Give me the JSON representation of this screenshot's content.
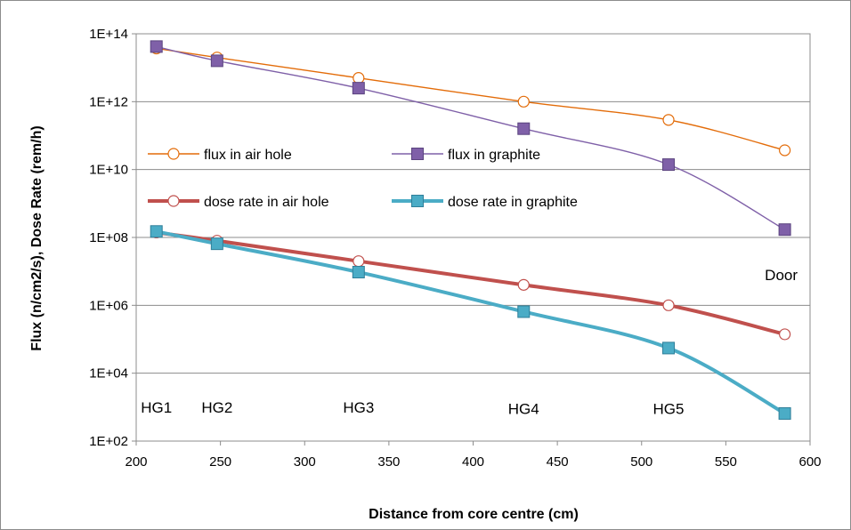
{
  "chart_data": {
    "type": "line",
    "title": "",
    "xlabel": "Distance from core centre (cm)",
    "ylabel": "Flux (n/cm2/s), Dose Rate (rem/h)",
    "x_scale": "linear",
    "y_scale": "log",
    "xlim": [
      200,
      600
    ],
    "ylim": [
      100,
      100000000000000
    ],
    "x_ticks": [
      "200",
      "250",
      "300",
      "350",
      "400",
      "450",
      "500",
      "550",
      "600"
    ],
    "x_tick_values": [
      200,
      250,
      300,
      350,
      400,
      450,
      500,
      550,
      600
    ],
    "y_ticks": [
      "1E+02",
      "1E+04",
      "1E+06",
      "1E+08",
      "1E+10",
      "1E+12",
      "1E+14"
    ],
    "y_tick_values": [
      100,
      10000,
      1000000,
      100000000,
      10000000000,
      1000000000000,
      100000000000000
    ],
    "grid": "horizontal",
    "legend_position": "inside-upper-left",
    "x": [
      212,
      248,
      332,
      430,
      516,
      585
    ],
    "series": [
      {
        "name": "flux in air hole",
        "color": "#e36c09",
        "marker": "circle-open",
        "line_width": "thin",
        "values": [
          37000000000000,
          20000000000000,
          5000000000000,
          1000000000000,
          290000000000,
          37000000000
        ]
      },
      {
        "name": "flux in graphite",
        "color": "#7f60a8",
        "marker": "square-filled",
        "line_width": "thin",
        "values": [
          42000000000000,
          16000000000000,
          2500000000000,
          160000000000,
          14000000000,
          170000000
        ]
      },
      {
        "name": "dose rate in air hole",
        "color": "#c0504d",
        "marker": "circle-open",
        "line_width": "thick",
        "values": [
          140000000,
          80000000,
          20000000,
          4000000,
          1000000,
          140000
        ]
      },
      {
        "name": "dose rate in graphite",
        "color": "#4bacc6",
        "marker": "square-filled",
        "line_width": "thick",
        "values": [
          150000000,
          65000000,
          9500000,
          650000,
          55000,
          650
        ]
      }
    ],
    "annotations": [
      {
        "text": "HG1",
        "x": 212,
        "y": 1000
      },
      {
        "text": "HG2",
        "x": 248,
        "y": 1000
      },
      {
        "text": "HG3",
        "x": 332,
        "y": 1000
      },
      {
        "text": "HG4",
        "x": 430,
        "y": 900
      },
      {
        "text": "HG5",
        "x": 516,
        "y": 900
      },
      {
        "text": "Door",
        "x": 585,
        "y": 8000000
      }
    ]
  }
}
